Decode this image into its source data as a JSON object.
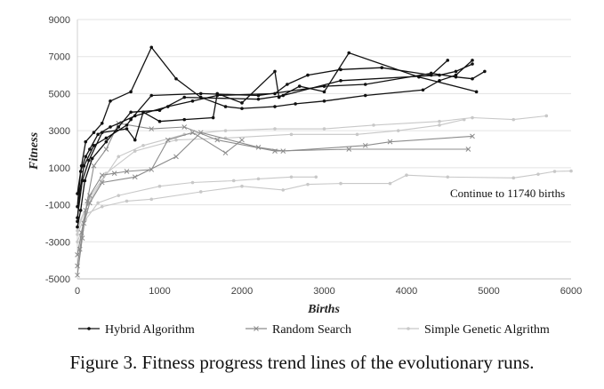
{
  "caption": "Figure 3. Fitness progress trend lines of the evolutionary runs.",
  "chart_data": {
    "type": "line",
    "xlabel": "Births",
    "ylabel": "Fitness",
    "xlim": [
      0,
      6000
    ],
    "ylim": [
      -5000,
      9000
    ],
    "x_ticks": [
      "0",
      "1000",
      "2000",
      "3000",
      "4000",
      "5000",
      "6000"
    ],
    "y_ticks": [
      "-5000",
      "-3000",
      "-1000",
      "1000",
      "3000",
      "5000",
      "7000",
      "9000"
    ],
    "grid": "horizontal",
    "legend_position": "bottom",
    "annotation": "Continue to 11740 births",
    "series": [
      {
        "name": "Hybrid Algorithm",
        "color": "#111111",
        "marker": "dot",
        "runs": [
          [
            [
              0,
              -400
            ],
            [
              50,
              1100
            ],
            [
              100,
              2400
            ],
            [
              200,
              2900
            ],
            [
              300,
              3400
            ],
            [
              400,
              4600
            ],
            [
              650,
              5100
            ],
            [
              900,
              7500
            ],
            [
              1200,
              5800
            ],
            [
              1500,
              4800
            ],
            [
              1800,
              4300
            ],
            [
              2000,
              4200
            ],
            [
              2400,
              4300
            ],
            [
              2650,
              4450
            ],
            [
              3000,
              4600
            ],
            [
              3500,
              4900
            ],
            [
              4200,
              5200
            ],
            [
              4400,
              5700
            ],
            [
              4600,
              6000
            ],
            [
              4800,
              6800
            ]
          ],
          [
            [
              0,
              -1100
            ],
            [
              40,
              800
            ],
            [
              100,
              1600
            ],
            [
              150,
              2000
            ],
            [
              250,
              2800
            ],
            [
              400,
              3200
            ],
            [
              700,
              3800
            ],
            [
              1100,
              4300
            ],
            [
              1400,
              4600
            ],
            [
              1700,
              4900
            ],
            [
              2400,
              5000
            ],
            [
              2550,
              5500
            ],
            [
              2800,
              6000
            ],
            [
              3200,
              6300
            ],
            [
              3700,
              6400
            ],
            [
              4300,
              6000
            ],
            [
              4500,
              6800
            ]
          ],
          [
            [
              0,
              -1700
            ],
            [
              60,
              300
            ],
            [
              140,
              1400
            ],
            [
              300,
              2900
            ],
            [
              600,
              3100
            ],
            [
              700,
              2500
            ],
            [
              800,
              4000
            ],
            [
              1000,
              3500
            ],
            [
              1300,
              3600
            ],
            [
              1650,
              3700
            ],
            [
              1700,
              5000
            ],
            [
              2000,
              4500
            ],
            [
              2400,
              6200
            ],
            [
              2450,
              4800
            ],
            [
              2700,
              5400
            ],
            [
              3000,
              5100
            ],
            [
              3300,
              7200
            ],
            [
              4150,
              5900
            ],
            [
              4850,
              5100
            ]
          ],
          [
            [
              0,
              -1900
            ],
            [
              30,
              -200
            ],
            [
              80,
              1100
            ],
            [
              200,
              2200
            ],
            [
              350,
              2600
            ],
            [
              600,
              3300
            ],
            [
              650,
              3600
            ],
            [
              900,
              4900
            ],
            [
              1500,
              5000
            ],
            [
              2200,
              4900
            ],
            [
              3000,
              5400
            ],
            [
              3500,
              5500
            ],
            [
              4300,
              6100
            ],
            [
              4600,
              5900
            ],
            [
              4800,
              5800
            ],
            [
              4950,
              6200
            ]
          ],
          [
            [
              0,
              -2200
            ],
            [
              40,
              -1300
            ],
            [
              90,
              300
            ],
            [
              180,
              1500
            ],
            [
              350,
              2400
            ],
            [
              500,
              3200
            ],
            [
              650,
              4000
            ],
            [
              1000,
              4100
            ],
            [
              1300,
              4800
            ],
            [
              2200,
              4700
            ],
            [
              2500,
              4900
            ],
            [
              3200,
              5700
            ],
            [
              4400,
              6000
            ],
            [
              4600,
              6200
            ],
            [
              4800,
              6600
            ]
          ]
        ]
      },
      {
        "name": "Random Search",
        "color": "#8c8c8c",
        "marker": "x",
        "runs": [
          [
            [
              0,
              -3700
            ],
            [
              50,
              -2500
            ],
            [
              100,
              -1300
            ],
            [
              150,
              -500
            ],
            [
              300,
              600
            ],
            [
              450,
              700
            ],
            [
              600,
              800
            ],
            [
              900,
              900
            ],
            [
              1100,
              2500
            ],
            [
              1400,
              2900
            ],
            [
              1800,
              1800
            ],
            [
              2000,
              2500
            ]
          ],
          [
            [
              0,
              -4300
            ],
            [
              30,
              -3400
            ],
            [
              80,
              -2000
            ],
            [
              150,
              -900
            ],
            [
              300,
              200
            ],
            [
              700,
              500
            ],
            [
              1200,
              1600
            ],
            [
              1500,
              2900
            ],
            [
              2200,
              2100
            ],
            [
              2500,
              1900
            ],
            [
              3500,
              2200
            ],
            [
              3800,
              2400
            ],
            [
              4800,
              2700
            ]
          ],
          [
            [
              0,
              -4800
            ],
            [
              60,
              -2800
            ],
            [
              120,
              -800
            ],
            [
              200,
              1100
            ],
            [
              350,
              2000
            ],
            [
              500,
              3400
            ],
            [
              900,
              3100
            ],
            [
              1300,
              3200
            ],
            [
              1700,
              2500
            ],
            [
              2400,
              1900
            ],
            [
              3300,
              2000
            ],
            [
              4750,
              2000
            ]
          ]
        ]
      },
      {
        "name": "Simple Genetic Algrithm",
        "color": "#c8c8c8",
        "marker": "dot",
        "runs": [
          [
            [
              0,
              -2600
            ],
            [
              100,
              -1500
            ],
            [
              300,
              -1100
            ],
            [
              600,
              -800
            ],
            [
              900,
              -700
            ],
            [
              1500,
              -300
            ],
            [
              2000,
              0
            ],
            [
              2500,
              -200
            ],
            [
              2800,
              100
            ],
            [
              3200,
              150
            ],
            [
              3800,
              150
            ],
            [
              4000,
              600
            ],
            [
              4500,
              500
            ],
            [
              5300,
              450
            ],
            [
              5600,
              650
            ],
            [
              5800,
              800
            ],
            [
              6000,
              820
            ]
          ],
          [
            [
              0,
              -3000
            ],
            [
              100,
              -1800
            ],
            [
              250,
              -900
            ],
            [
              500,
              -500
            ],
            [
              1000,
              0
            ],
            [
              1400,
              200
            ],
            [
              1900,
              300
            ],
            [
              2200,
              400
            ],
            [
              2600,
              500
            ],
            [
              2900,
              500
            ]
          ],
          [
            [
              0,
              -2200
            ],
            [
              120,
              -1000
            ],
            [
              300,
              300
            ],
            [
              500,
              1600
            ],
            [
              800,
              2200
            ],
            [
              1300,
              2800
            ],
            [
              1800,
              3000
            ],
            [
              2400,
              3100
            ],
            [
              3000,
              3100
            ],
            [
              3600,
              3300
            ],
            [
              4400,
              3500
            ],
            [
              4800,
              3700
            ],
            [
              5300,
              3600
            ],
            [
              5700,
              3800
            ]
          ],
          [
            [
              0,
              -2400
            ],
            [
              150,
              -600
            ],
            [
              350,
              700
            ],
            [
              700,
              1900
            ],
            [
              1200,
              2500
            ],
            [
              1800,
              2600
            ],
            [
              2600,
              2800
            ],
            [
              3400,
              2800
            ],
            [
              3900,
              3000
            ],
            [
              4400,
              3300
            ],
            [
              4700,
              3600
            ]
          ]
        ]
      }
    ]
  }
}
